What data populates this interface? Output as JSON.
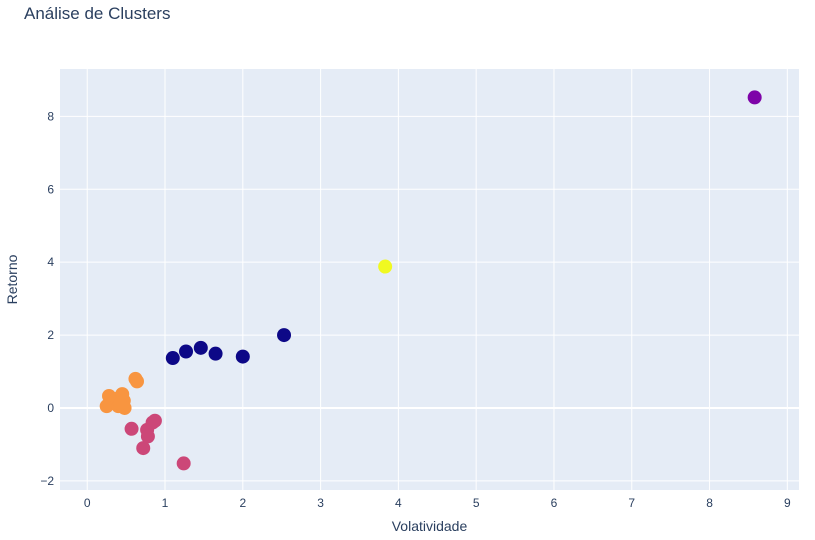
{
  "chart_data": {
    "type": "scatter",
    "title": "Análise de Clusters",
    "xlabel": "Volatividade",
    "ylabel": "Retorno",
    "xlim": [
      -0.35,
      9.15
    ],
    "ylim": [
      -2.25,
      9.3
    ],
    "xticks": [
      "0",
      "1",
      "2",
      "3",
      "4",
      "5",
      "6",
      "7",
      "8",
      "9"
    ],
    "yticks": [
      "−2",
      "0",
      "2",
      "4",
      "6",
      "8"
    ],
    "grid": true,
    "legend": "none",
    "colors": {
      "background": "#e5ecf6",
      "grid": "#ffffff",
      "cluster_0": "#0d0887",
      "cluster_1": "#cc4778",
      "cluster_2": "#f89540",
      "cluster_3": "#7e03a8",
      "cluster_4": "#f0f921"
    },
    "points": [
      {
        "x": 1.1,
        "y": 1.37,
        "cluster": "cluster_0"
      },
      {
        "x": 1.27,
        "y": 1.55,
        "cluster": "cluster_0"
      },
      {
        "x": 1.46,
        "y": 1.65,
        "cluster": "cluster_0"
      },
      {
        "x": 1.65,
        "y": 1.49,
        "cluster": "cluster_0"
      },
      {
        "x": 2.0,
        "y": 1.41,
        "cluster": "cluster_0"
      },
      {
        "x": 2.53,
        "y": 2.0,
        "cluster": "cluster_0"
      },
      {
        "x": 8.58,
        "y": 8.52,
        "cluster": "cluster_3"
      },
      {
        "x": 3.83,
        "y": 3.88,
        "cluster": "cluster_4"
      },
      {
        "x": 0.62,
        "y": 0.8,
        "cluster": "cluster_2"
      },
      {
        "x": 0.64,
        "y": 0.73,
        "cluster": "cluster_2"
      },
      {
        "x": 0.28,
        "y": 0.33,
        "cluster": "cluster_2"
      },
      {
        "x": 0.25,
        "y": 0.05,
        "cluster": "cluster_2"
      },
      {
        "x": 0.33,
        "y": 0.15,
        "cluster": "cluster_2"
      },
      {
        "x": 0.38,
        "y": 0.25,
        "cluster": "cluster_2"
      },
      {
        "x": 0.4,
        "y": 0.05,
        "cluster": "cluster_2"
      },
      {
        "x": 0.45,
        "y": 0.38,
        "cluster": "cluster_2"
      },
      {
        "x": 0.47,
        "y": 0.2,
        "cluster": "cluster_2"
      },
      {
        "x": 0.48,
        "y": 0.0,
        "cluster": "cluster_2"
      },
      {
        "x": 0.42,
        "y": 0.12,
        "cluster": "cluster_2"
      },
      {
        "x": 0.57,
        "y": -0.57,
        "cluster": "cluster_1"
      },
      {
        "x": 0.72,
        "y": -1.1,
        "cluster": "cluster_1"
      },
      {
        "x": 0.77,
        "y": -0.6,
        "cluster": "cluster_1"
      },
      {
        "x": 0.78,
        "y": -0.78,
        "cluster": "cluster_1"
      },
      {
        "x": 0.84,
        "y": -0.4,
        "cluster": "cluster_1"
      },
      {
        "x": 0.87,
        "y": -0.35,
        "cluster": "cluster_1"
      },
      {
        "x": 1.24,
        "y": -1.52,
        "cluster": "cluster_1"
      }
    ]
  }
}
